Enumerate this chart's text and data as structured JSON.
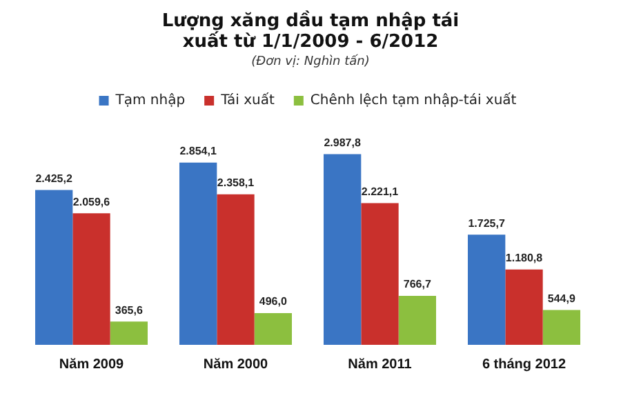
{
  "chart_data": {
    "type": "bar",
    "title": "Lượng xăng dầu tạm nhập tái xuất từ 1/1/2009 - 6/2012",
    "subtitle": "(Đơn vị: Nghìn tấn)",
    "categories": [
      "Năm 2009",
      "Năm 2000",
      "Năm 2011",
      "6 tháng 2012"
    ],
    "series": [
      {
        "name": "Tạm nhập",
        "color": "#3a75c4",
        "values": [
          2425.2,
          2854.1,
          2987.8,
          1725.7
        ],
        "value_labels": [
          "2.425,2",
          "2.854,1",
          "2.987,8",
          "1.725,7"
        ]
      },
      {
        "name": "Tái xuất",
        "color": "#c9302c",
        "values": [
          2059.6,
          2358.1,
          2221.1,
          1180.8
        ],
        "value_labels": [
          "2.059,6",
          "2.358,1",
          "2.221,1",
          "1.180,8"
        ]
      },
      {
        "name": "Chênh lệch tạm nhập-tái xuất",
        "color": "#8cbf3f",
        "values": [
          365.6,
          496.0,
          766.7,
          544.9
        ],
        "value_labels": [
          "365,6",
          "496,0",
          "766,7",
          "544,9"
        ]
      }
    ],
    "legend": "top",
    "grid": false
  }
}
